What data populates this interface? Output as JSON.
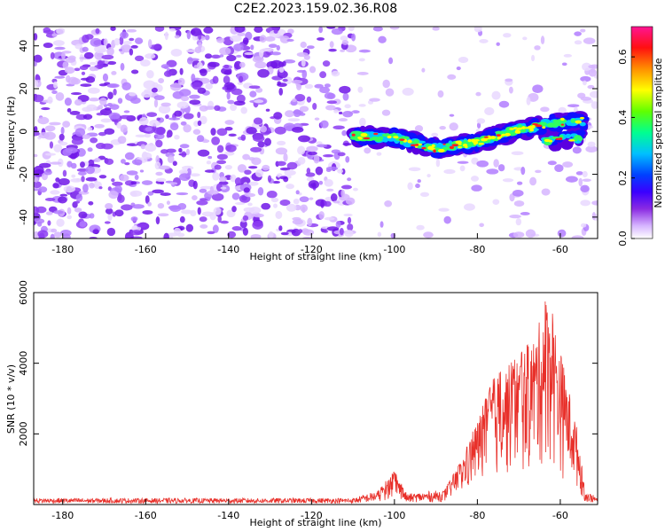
{
  "title": "C2E2.2023.159.02.36.R08",
  "chart_data": [
    {
      "type": "heatmap",
      "title": "C2E2.2023.159.02.36.R08",
      "xlabel": "Height of straight line (km)",
      "ylabel": "Frequency (Hz)",
      "xlim": [
        -187,
        -51
      ],
      "ylim": [
        -50,
        49
      ],
      "xticks": [
        -180,
        -160,
        -140,
        -120,
        -100,
        -80,
        -60
      ],
      "yticks": [
        -40,
        -20,
        0,
        20,
        40
      ],
      "colorbar": {
        "label": "Normalized spectral amplitude",
        "range": [
          0.0,
          0.7
        ],
        "ticks": [
          0.0,
          0.2,
          0.4,
          0.6
        ],
        "colormap": [
          "#ffffff",
          "#d6b5ff",
          "#8a2be2",
          "#5a00e0",
          "#0000ff",
          "#00c8ff",
          "#00ffa0",
          "#40ff00",
          "#ffff00",
          "#ff8000",
          "#ff0000",
          "#ff1493"
        ]
      },
      "noise_colors": [
        "#e9d8ff",
        "#d6b5ff",
        "#b27cff",
        "#8c3cf2",
        "#7016e8"
      ],
      "signal_track": {
        "description_points": [
          {
            "x": -110,
            "f": -2
          },
          {
            "x": -100,
            "f": -3
          },
          {
            "x": -90,
            "f": -8
          },
          {
            "x": -80,
            "f": -5
          },
          {
            "x": -72,
            "f": 0
          },
          {
            "x": -62,
            "f": 4
          },
          {
            "x": -54,
            "f": 5
          }
        ],
        "second_branch": [
          {
            "x": -64,
            "f": -4
          },
          {
            "x": -55,
            "f": -3
          }
        ],
        "peak_amplitude": 0.7
      }
    },
    {
      "type": "line",
      "xlabel": "Height of straight line (km)",
      "ylabel": "SNR (10 * v/v)",
      "xlim": [
        -187,
        -51
      ],
      "ylim": [
        0,
        6000
      ],
      "xticks": [
        -180,
        -160,
        -140,
        -120,
        -100,
        -80,
        -60
      ],
      "yticks": [
        2000,
        4000,
        6000
      ],
      "color": "#e8302a",
      "envelope": [
        {
          "x": -187,
          "y": 180
        },
        {
          "x": -110,
          "y": 180
        },
        {
          "x": -104,
          "y": 400
        },
        {
          "x": -100,
          "y": 950
        },
        {
          "x": -97,
          "y": 300
        },
        {
          "x": -88,
          "y": 420
        },
        {
          "x": -84,
          "y": 1200
        },
        {
          "x": -80,
          "y": 2400
        },
        {
          "x": -76,
          "y": 3600
        },
        {
          "x": -70,
          "y": 4200
        },
        {
          "x": -66,
          "y": 4800
        },
        {
          "x": -63,
          "y": 6000
        },
        {
          "x": -60,
          "y": 4400
        },
        {
          "x": -56,
          "y": 2200
        },
        {
          "x": -54,
          "y": 400
        },
        {
          "x": -51,
          "y": 200
        }
      ]
    }
  ]
}
